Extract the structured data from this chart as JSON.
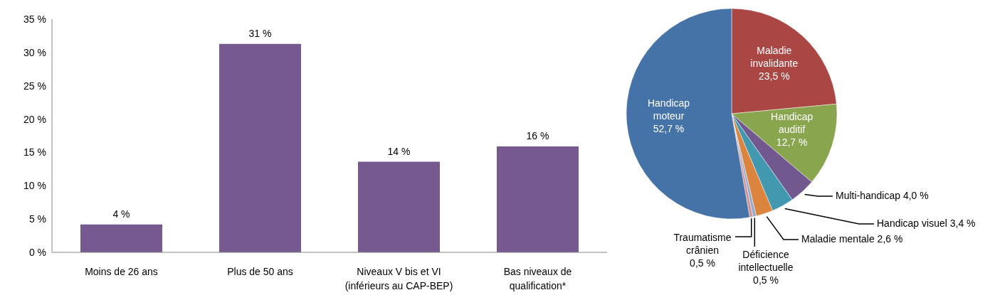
{
  "chart_data": [
    {
      "type": "bar",
      "categories": [
        "Moins de 26 ans",
        "Plus de 50 ans",
        "Niveaux V bis et VI (inférieurs au CAP-BEP)",
        "Bas niveaux de qualification*"
      ],
      "values": [
        4.2,
        31.3,
        13.6,
        15.9
      ],
      "value_labels": [
        "4 %",
        "31 %",
        "14 %",
        "16 %"
      ],
      "color": "#75598f",
      "ylim": [
        0,
        35
      ],
      "yticks": [
        {
          "value": 0,
          "label": "0 %"
        },
        {
          "value": 5,
          "label": "5 %"
        },
        {
          "value": 10,
          "label": "10 %"
        },
        {
          "value": 15,
          "label": "15 %"
        },
        {
          "value": 20,
          "label": "20 %"
        },
        {
          "value": 25,
          "label": "25 %"
        },
        {
          "value": 30,
          "label": "30 %"
        },
        {
          "value": 35,
          "label": "35 %"
        }
      ],
      "legend": false
    },
    {
      "type": "pie",
      "categories": [
        "Maladie invalidante",
        "Handicap auditif",
        "Multi-handicap",
        "Handicap visuel",
        "Maladie mentale",
        "Déficience intellectuelle",
        "Traumatisme crânien",
        "Handicap moteur"
      ],
      "values": [
        23.5,
        12.7,
        4.0,
        3.4,
        2.6,
        0.5,
        0.5,
        52.7
      ],
      "value_labels": [
        "23,5 %",
        "12,7 %",
        "4,0 %",
        "3,4 %",
        "2,6 %",
        "0,5 %",
        "0,5 %",
        "52,7 %"
      ],
      "colors": [
        "#aa4643",
        "#89a54e",
        "#71588f",
        "#4198af",
        "#db843d",
        "#93a9cf",
        "#d19392",
        "#4572a7"
      ],
      "legend": false
    }
  ]
}
